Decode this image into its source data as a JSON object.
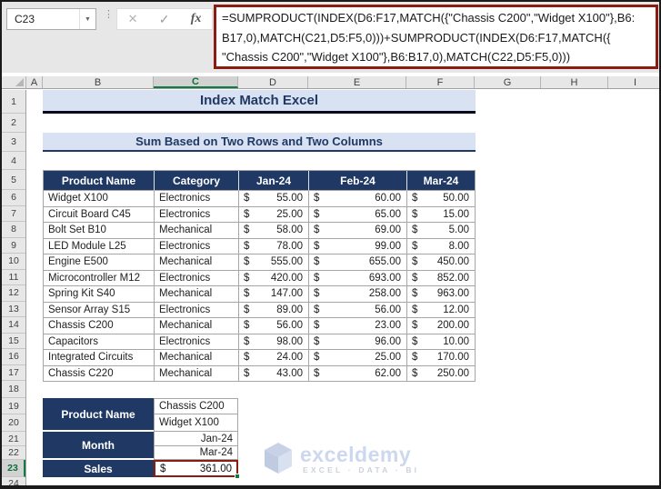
{
  "colors": {
    "header_fill": "#1F3864",
    "band_fill": "#D9E2F3",
    "highlight_border": "#8B1C12",
    "selection_green": "#107C41"
  },
  "formula_bar": {
    "name_box_value": "C23",
    "cancel_glyph": "✕",
    "enter_glyph": "✓",
    "function_glyph": "fx",
    "formula_lines": [
      "=SUMPRODUCT(INDEX(D6:F17,MATCH({\"Chassis C200\",\"Widget X100\"},B6:",
      "B17,0),MATCH(C21,D5:F5,0)))+SUMPRODUCT(INDEX(D6:F17,MATCH({",
      "\"Chassis C200\",\"Widget X100\"},B6:B17,0),MATCH(C22,D5:F5,0)))"
    ]
  },
  "sheet": {
    "column_headers": [
      "A",
      "B",
      "C",
      "D",
      "E",
      "F",
      "G",
      "H",
      "I"
    ],
    "row_headers": [
      "1",
      "2",
      "3",
      "4",
      "5",
      "6",
      "7",
      "8",
      "9",
      "10",
      "11",
      "12",
      "13",
      "14",
      "15",
      "16",
      "17",
      "18",
      "19",
      "20",
      "21",
      "22",
      "23",
      "24"
    ],
    "selected_column": "C",
    "selected_row": "23",
    "selected_cell": "C23",
    "title": "Index Match Excel",
    "subtitle": "Sum Based on Two Rows and Two Columns",
    "currency_symbol": "$",
    "table": {
      "headers": [
        "Product Name",
        "Category",
        "Jan-24",
        "Feb-24",
        "Mar-24"
      ],
      "rows": [
        {
          "product": "Widget X100",
          "category": "Electronics",
          "values": [
            "55.00",
            "60.00",
            "50.00"
          ]
        },
        {
          "product": "Circuit Board C45",
          "category": "Electronics",
          "values": [
            "25.00",
            "65.00",
            "15.00"
          ]
        },
        {
          "product": "Bolt Set B10",
          "category": "Mechanical",
          "values": [
            "58.00",
            "69.00",
            "5.00"
          ]
        },
        {
          "product": "LED Module L25",
          "category": "Electronics",
          "values": [
            "78.00",
            "99.00",
            "8.00"
          ]
        },
        {
          "product": "Engine E500",
          "category": "Mechanical",
          "values": [
            "555.00",
            "655.00",
            "450.00"
          ]
        },
        {
          "product": "Microcontroller M12",
          "category": "Electronics",
          "values": [
            "420.00",
            "693.00",
            "852.00"
          ]
        },
        {
          "product": "Spring Kit S40",
          "category": "Mechanical",
          "values": [
            "147.00",
            "258.00",
            "963.00"
          ]
        },
        {
          "product": "Sensor Array S15",
          "category": "Electronics",
          "values": [
            "89.00",
            "56.00",
            "12.00"
          ]
        },
        {
          "product": "Chassis C200",
          "category": "Mechanical",
          "values": [
            "56.00",
            "23.00",
            "200.00"
          ]
        },
        {
          "product": "Capacitors",
          "category": "Electronics",
          "values": [
            "98.00",
            "96.00",
            "10.00"
          ]
        },
        {
          "product": "Integrated Circuits",
          "category": "Mechanical",
          "values": [
            "24.00",
            "25.00",
            "170.00"
          ]
        },
        {
          "product": "Chassis C220",
          "category": "Mechanical",
          "values": [
            "43.00",
            "62.00",
            "250.00"
          ]
        }
      ]
    },
    "lookup": {
      "product_label": "Product Name",
      "product_values": [
        "Chassis C200",
        "Widget X100"
      ],
      "month_label": "Month",
      "month_values": [
        "Jan-24",
        "Mar-24"
      ],
      "sales_label": "Sales",
      "sales_value": "361.00"
    },
    "watermark": {
      "brand": "exceldemy",
      "tagline": "EXCEL · DATA · BI"
    }
  }
}
